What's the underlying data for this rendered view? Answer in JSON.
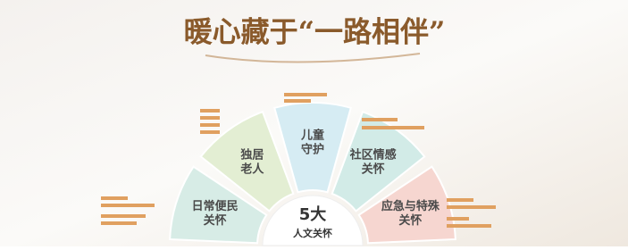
{
  "header": {
    "title": "暖心藏于“一路相伴”"
  },
  "center": {
    "number": "5大",
    "label": "人文关怀"
  },
  "segments": [
    {
      "lines": [
        "日常便民",
        "关怀"
      ]
    },
    {
      "lines": [
        "独居",
        "老人"
      ]
    },
    {
      "lines": [
        "儿童",
        "守护"
      ]
    },
    {
      "lines": [
        "社区情感",
        "关怀"
      ]
    },
    {
      "lines": [
        "应急与特殊",
        "关怀"
      ]
    }
  ]
}
